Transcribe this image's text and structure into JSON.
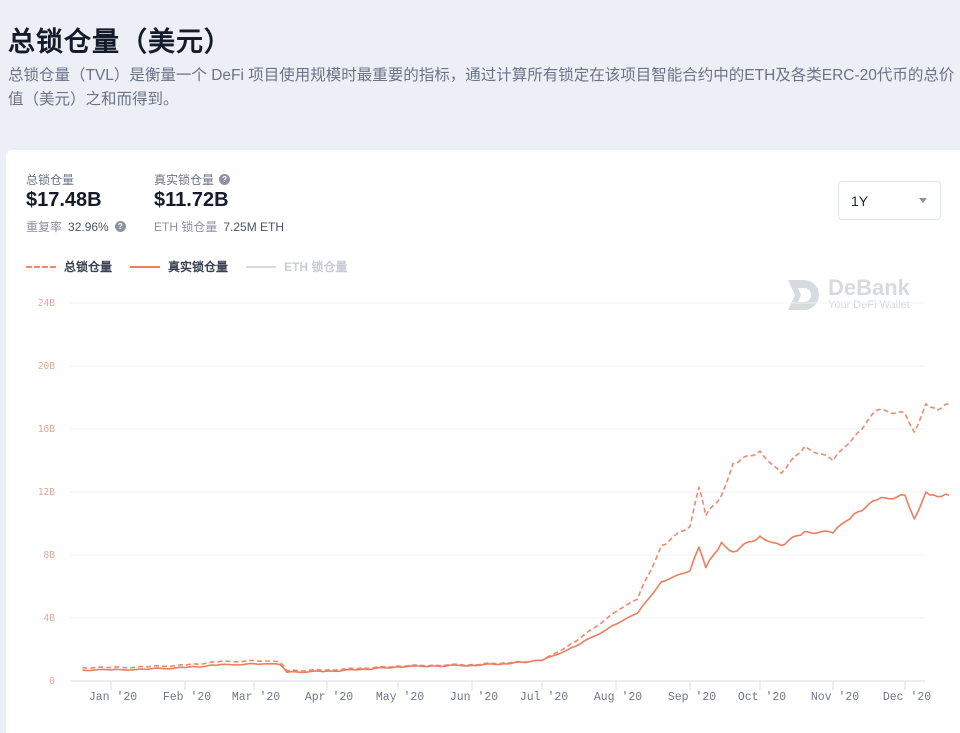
{
  "header": {
    "title": "总锁仓量（美元）",
    "description": "总锁仓量（TVL）是衡量一个 DeFi 项目使用规模时最重要的指标，通过计算所有锁定在该项目智能合约中的ETH及各类ERC-20代币的总价值（美元）之和而得到。"
  },
  "stats": {
    "tvl": {
      "label": "总锁仓量",
      "value": "$17.48B",
      "sub_label": "重复率",
      "sub_value": "32.96%"
    },
    "real_tvl": {
      "label": "真实锁仓量",
      "value": "$11.72B",
      "sub_label": "ETH 锁仓量",
      "sub_value": "7.25M ETH"
    }
  },
  "range_select": {
    "value": "1Y"
  },
  "legend": [
    {
      "label": "总锁仓量",
      "style": "dashed",
      "active": true
    },
    {
      "label": "真实锁仓量",
      "style": "solid",
      "active": true
    },
    {
      "label": "ETH 锁仓量",
      "style": "solid",
      "active": false
    }
  ],
  "watermark": {
    "brand": "DeBank",
    "tagline": "Your DeFi Wallet"
  },
  "colors": {
    "accent": "#ec7d5e",
    "dashed_line": "#ec8a70",
    "grid": "#eef0f4",
    "ytick": "#e0a998",
    "background": "#eceff6"
  },
  "chart_data": {
    "type": "line",
    "title": "总锁仓量（美元）",
    "xlabel": "",
    "ylabel": "",
    "ylim": [
      0,
      24
    ],
    "y_unit": "B USD",
    "grid": true,
    "legend_position": "top-left",
    "y_ticks": [
      "0",
      "4B",
      "8B",
      "12B",
      "16B",
      "20B",
      "24B"
    ],
    "x_ticks": [
      "Jan '20",
      "Feb '20",
      "Mar '20",
      "Apr '20",
      "May '20",
      "Jun '20",
      "Jul '20",
      "Aug '20",
      "Sep '20",
      "Oct '20",
      "Nov '20",
      "Dec '20"
    ],
    "x": [
      "Dec 20 '19",
      "Jan 1 '20",
      "Jan 15 '20",
      "Feb 1 '20",
      "Feb 15 '20",
      "Mar 1 '20",
      "Mar 12 '20",
      "Mar 15 '20",
      "Apr 1 '20",
      "Apr 15 '20",
      "May 1 '20",
      "May 15 '20",
      "Jun 1 '20",
      "Jun 15 '20",
      "Jul 1 '20",
      "Jul 15 '20",
      "Aug 1 '20",
      "Aug 10 '20",
      "Aug 20 '20",
      "Sep 1 '20",
      "Sep 5 '20",
      "Sep 8 '20",
      "Sep 15 '20",
      "Sep 20 '20",
      "Oct 1 '20",
      "Oct 10 '20",
      "Oct 20 '20",
      "Nov 1 '20",
      "Nov 10 '20",
      "Nov 20 '20",
      "Dec 1 '20",
      "Dec 5 '20",
      "Dec 10 '20",
      "Dec 15 '20",
      "Dec 20 '20"
    ],
    "series": [
      {
        "name": "总锁仓量",
        "style": "dashed",
        "values": [
          0.85,
          0.85,
          0.9,
          1.0,
          1.2,
          1.3,
          1.2,
          0.65,
          0.7,
          0.8,
          0.95,
          1.0,
          1.05,
          1.15,
          1.3,
          2.5,
          4.4,
          5.2,
          8.6,
          9.8,
          12.3,
          10.5,
          11.8,
          13.8,
          14.6,
          13.2,
          14.9,
          14.0,
          15.5,
          17.2,
          17.0,
          15.8,
          17.6,
          17.2,
          17.6
        ]
      },
      {
        "name": "真实锁仓量",
        "style": "solid",
        "values": [
          0.7,
          0.7,
          0.75,
          0.85,
          1.0,
          1.1,
          1.05,
          0.55,
          0.62,
          0.72,
          0.9,
          0.95,
          1.0,
          1.1,
          1.3,
          2.2,
          3.6,
          4.3,
          6.3,
          7.0,
          8.5,
          7.2,
          8.8,
          8.2,
          9.2,
          8.6,
          9.5,
          9.4,
          10.6,
          11.5,
          11.8,
          10.3,
          12.0,
          11.7,
          11.8
        ]
      },
      {
        "name": "ETH 锁仓量",
        "style": "solid",
        "hidden": true,
        "values": []
      }
    ]
  }
}
